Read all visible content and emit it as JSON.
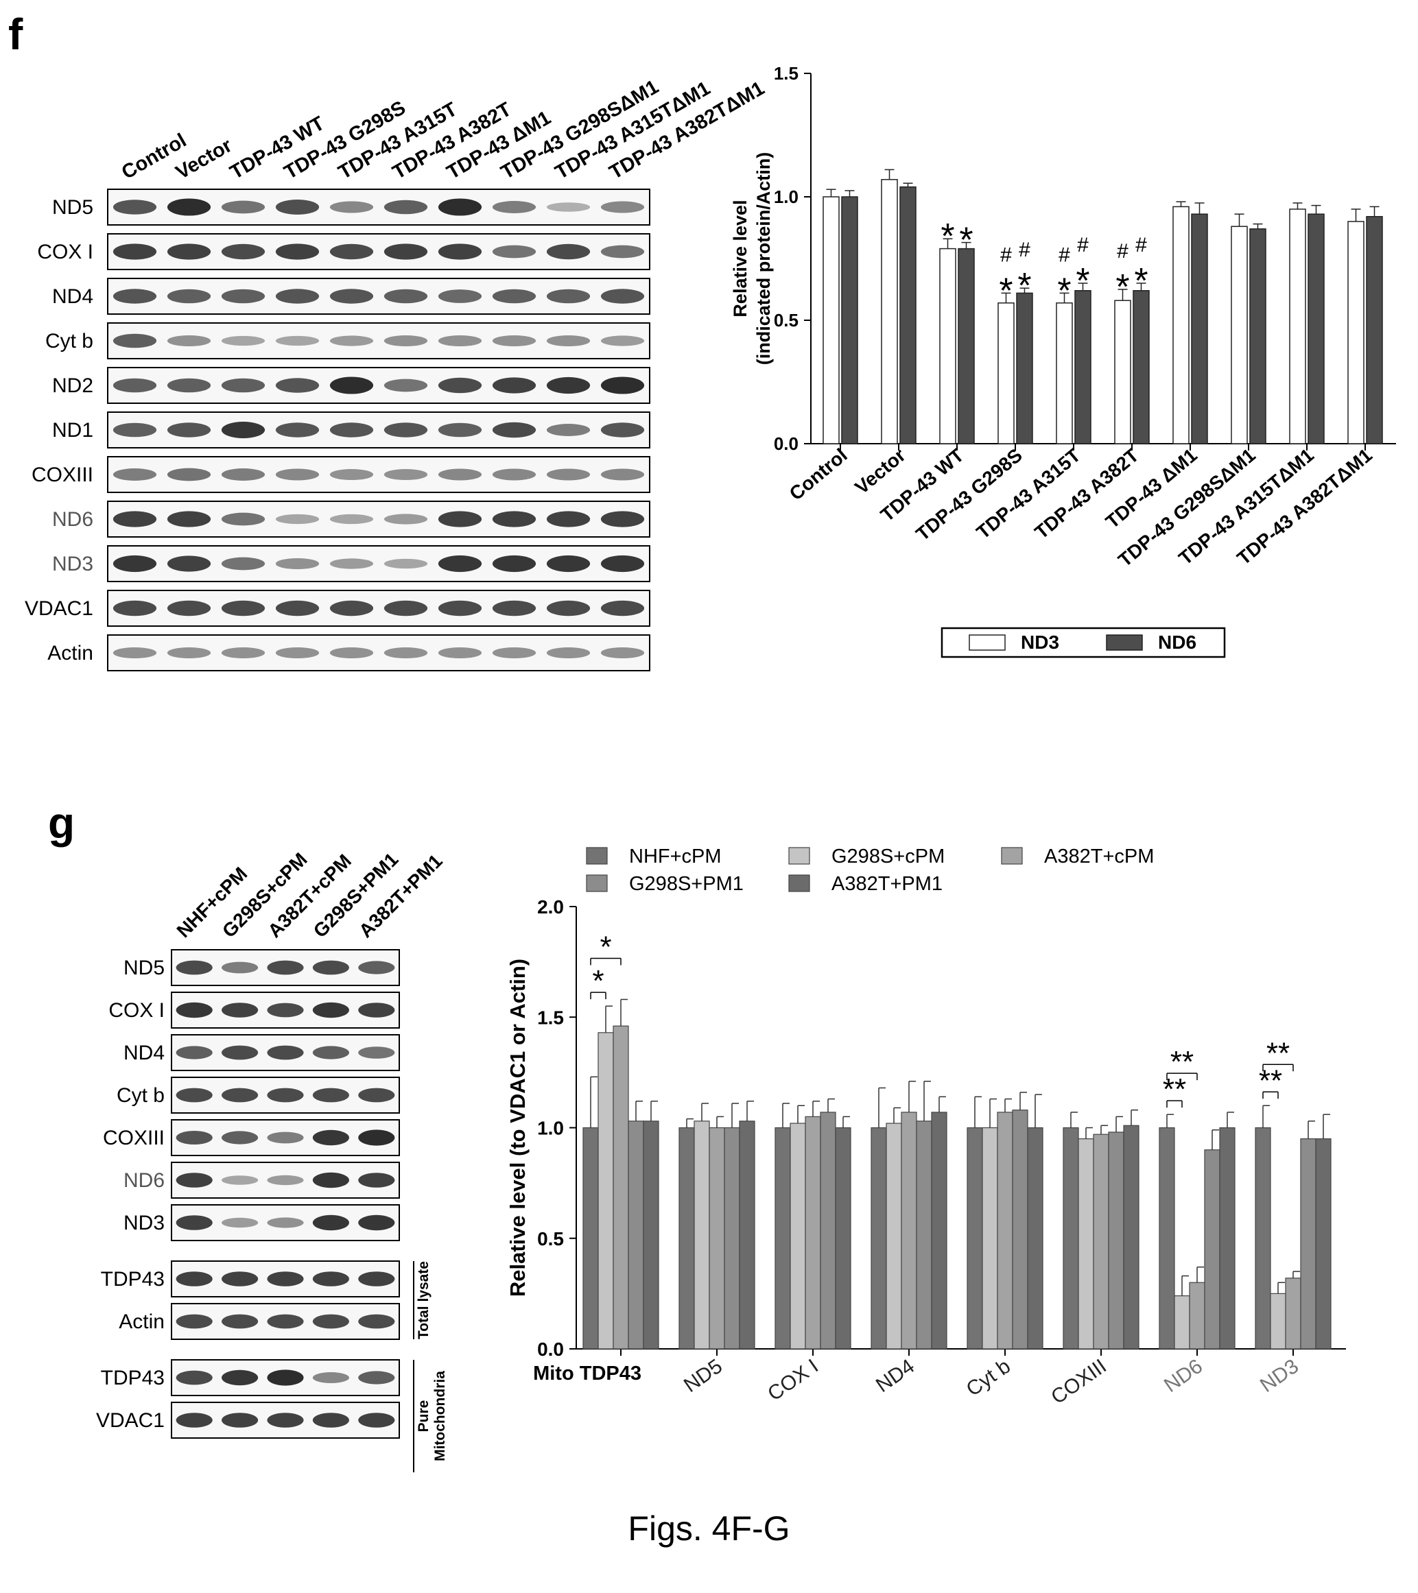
{
  "panels": {
    "f_label": "f",
    "g_label": "g"
  },
  "caption": "Figs. 4F-G",
  "blot_f": {
    "lanes": [
      "Control",
      "Vector",
      "TDP-43 WT",
      "TDP-43 G298S",
      "TDP-43 A315T",
      "TDP-43 A382T",
      "TDP-43 ΔM1",
      "TDP-43 G298SΔM1",
      "TDP-43 A315TΔM1",
      "TDP-43 A382TΔM1"
    ],
    "rows": [
      {
        "label": "ND5",
        "label_color": "#000000",
        "intensity": [
          0.75,
          0.95,
          0.6,
          0.78,
          0.5,
          0.7,
          0.95,
          0.55,
          0.3,
          0.5
        ]
      },
      {
        "label": "COX I",
        "label_color": "#000000",
        "intensity": [
          0.85,
          0.85,
          0.8,
          0.85,
          0.8,
          0.85,
          0.85,
          0.6,
          0.8,
          0.6
        ]
      },
      {
        "label": "ND4",
        "label_color": "#000000",
        "intensity": [
          0.75,
          0.7,
          0.7,
          0.75,
          0.75,
          0.7,
          0.65,
          0.7,
          0.7,
          0.75
        ]
      },
      {
        "label": "Cyt b",
        "label_color": "#000000",
        "intensity": [
          0.7,
          0.45,
          0.35,
          0.35,
          0.4,
          0.45,
          0.45,
          0.45,
          0.45,
          0.4
        ]
      },
      {
        "label": "ND2",
        "label_color": "#000000",
        "intensity": [
          0.7,
          0.7,
          0.7,
          0.75,
          0.95,
          0.6,
          0.8,
          0.85,
          0.9,
          0.95
        ]
      },
      {
        "label": "ND1",
        "label_color": "#000000",
        "intensity": [
          0.7,
          0.75,
          0.9,
          0.75,
          0.75,
          0.75,
          0.7,
          0.8,
          0.55,
          0.75
        ]
      },
      {
        "label": "COXIII",
        "label_color": "#000000",
        "intensity": [
          0.55,
          0.6,
          0.55,
          0.5,
          0.45,
          0.45,
          0.5,
          0.5,
          0.5,
          0.5
        ]
      },
      {
        "label": "ND6",
        "label_color": "#555555",
        "intensity": [
          0.85,
          0.85,
          0.6,
          0.35,
          0.35,
          0.4,
          0.85,
          0.85,
          0.85,
          0.85
        ]
      },
      {
        "label": "ND3",
        "label_color": "#555555",
        "intensity": [
          0.9,
          0.85,
          0.6,
          0.45,
          0.4,
          0.35,
          0.9,
          0.9,
          0.9,
          0.9
        ]
      },
      {
        "label": "VDAC1",
        "label_color": "#000000",
        "intensity": [
          0.8,
          0.8,
          0.8,
          0.8,
          0.8,
          0.8,
          0.8,
          0.8,
          0.8,
          0.8
        ]
      },
      {
        "label": "Actin",
        "label_color": "#000000",
        "intensity": [
          0.45,
          0.45,
          0.45,
          0.45,
          0.45,
          0.45,
          0.45,
          0.45,
          0.45,
          0.45
        ]
      }
    ]
  },
  "blot_g": {
    "lanes": [
      "NHF+cPM",
      "G298S+cPM",
      "A382T+cPM",
      "G298S+PM1",
      "A382T+PM1"
    ],
    "rows": [
      {
        "label": "ND5",
        "label_color": "#000000",
        "group": 0,
        "intensity": [
          0.8,
          0.55,
          0.8,
          0.8,
          0.7
        ]
      },
      {
        "label": "COX I",
        "label_color": "#000000",
        "group": 0,
        "intensity": [
          0.9,
          0.85,
          0.8,
          0.9,
          0.85
        ]
      },
      {
        "label": "ND4",
        "label_color": "#000000",
        "group": 0,
        "intensity": [
          0.7,
          0.8,
          0.8,
          0.7,
          0.6
        ]
      },
      {
        "label": "Cyt b",
        "label_color": "#000000",
        "group": 0,
        "intensity": [
          0.8,
          0.8,
          0.8,
          0.8,
          0.8
        ]
      },
      {
        "label": "COXIII",
        "label_color": "#000000",
        "group": 0,
        "intensity": [
          0.75,
          0.7,
          0.55,
          0.9,
          0.95
        ]
      },
      {
        "label": "ND6",
        "label_color": "#555555",
        "group": 0,
        "intensity": [
          0.85,
          0.35,
          0.4,
          0.9,
          0.85
        ]
      },
      {
        "label": "ND3",
        "label_color": "#000000",
        "group": 0,
        "intensity": [
          0.85,
          0.4,
          0.45,
          0.9,
          0.9
        ]
      },
      {
        "label": "TDP43",
        "label_color": "#000000",
        "group": 1,
        "intensity": [
          0.85,
          0.85,
          0.85,
          0.85,
          0.85
        ]
      },
      {
        "label": "Actin",
        "label_color": "#000000",
        "group": 1,
        "intensity": [
          0.8,
          0.8,
          0.8,
          0.8,
          0.8
        ]
      },
      {
        "label": "TDP43",
        "label_color": "#000000",
        "group": 2,
        "intensity": [
          0.8,
          0.9,
          0.95,
          0.5,
          0.7
        ]
      },
      {
        "label": "VDAC1",
        "label_color": "#000000",
        "group": 2,
        "intensity": [
          0.85,
          0.85,
          0.85,
          0.85,
          0.85
        ]
      }
    ],
    "bracket_labels": [
      "Total lysate",
      "Pure\nMitochondria"
    ]
  },
  "chart_data": [
    {
      "type": "bar",
      "panel": "f",
      "categories": [
        "Control",
        "Vector",
        "TDP-43 WT",
        "TDP-43 G298S",
        "TDP-43 A315T",
        "TDP-43 A382T",
        "TDP-43 ΔM1",
        "TDP-43 G298SΔM1",
        "TDP-43 A315TΔM1",
        "TDP-43 A382TΔM1"
      ],
      "series": [
        {
          "name": "ND3",
          "color": "#ffffff",
          "values": [
            1.0,
            1.07,
            0.79,
            0.57,
            0.57,
            0.58,
            0.96,
            0.88,
            0.95,
            0.9
          ],
          "errors": [
            0.03,
            0.04,
            0.04,
            0.04,
            0.04,
            0.045,
            0.02,
            0.05,
            0.025,
            0.05
          ]
        },
        {
          "name": "ND6",
          "color": "#4d4d4d",
          "values": [
            1.0,
            1.04,
            0.79,
            0.61,
            0.62,
            0.62,
            0.93,
            0.87,
            0.93,
            0.92
          ],
          "errors": [
            0.025,
            0.015,
            0.025,
            0.02,
            0.03,
            0.03,
            0.045,
            0.02,
            0.035,
            0.04
          ]
        }
      ],
      "annotations": [
        {
          "category": 2,
          "series": 0,
          "marks": [
            "*"
          ]
        },
        {
          "category": 2,
          "series": 1,
          "marks": [
            "*"
          ]
        },
        {
          "category": 3,
          "series": 0,
          "marks": [
            "*",
            "#"
          ]
        },
        {
          "category": 3,
          "series": 1,
          "marks": [
            "*",
            "#"
          ]
        },
        {
          "category": 4,
          "series": 0,
          "marks": [
            "*",
            "#"
          ]
        },
        {
          "category": 4,
          "series": 1,
          "marks": [
            "*",
            "#"
          ]
        },
        {
          "category": 5,
          "series": 0,
          "marks": [
            "*",
            "#"
          ]
        },
        {
          "category": 5,
          "series": 1,
          "marks": [
            "*",
            "#"
          ]
        }
      ],
      "ylabel_lines": [
        "Relative level",
        "(indicated protein/Actin)"
      ],
      "ylim": [
        0,
        1.5
      ],
      "yticks": [
        "0.0",
        "0.5",
        "1.0",
        "1.5"
      ],
      "legend_position": "bottom-right"
    },
    {
      "type": "bar",
      "panel": "g",
      "categories": [
        "Mito TDP43",
        "ND5",
        "COX I",
        "ND4",
        "Cyt b",
        "COXIII",
        "ND6",
        "ND3"
      ],
      "category_colors": [
        "#000000",
        "#222222",
        "#222222",
        "#222222",
        "#222222",
        "#222222",
        "#777777",
        "#777777"
      ],
      "series": [
        {
          "name": "NHF+cPM",
          "color": "#737373",
          "values": [
            1.0,
            1.0,
            1.0,
            1.0,
            1.0,
            1.0,
            1.0,
            1.0
          ],
          "errors": [
            0.23,
            0.04,
            0.11,
            0.18,
            0.14,
            0.07,
            0.06,
            0.1
          ]
        },
        {
          "name": "G298S+cPM",
          "color": "#c4c4c4",
          "values": [
            1.43,
            1.03,
            1.02,
            1.02,
            1.0,
            0.95,
            0.24,
            0.25
          ],
          "errors": [
            0.12,
            0.08,
            0.08,
            0.07,
            0.13,
            0.05,
            0.09,
            0.05
          ]
        },
        {
          "name": "A382T+cPM",
          "color": "#a3a3a3",
          "values": [
            1.46,
            1.0,
            1.05,
            1.07,
            1.07,
            0.97,
            0.3,
            0.32
          ],
          "errors": [
            0.12,
            0.05,
            0.07,
            0.14,
            0.06,
            0.04,
            0.07,
            0.03
          ]
        },
        {
          "name": "G298S+PM1",
          "color": "#8c8c8c",
          "values": [
            1.03,
            1.0,
            1.07,
            1.03,
            1.08,
            0.98,
            0.9,
            0.95
          ],
          "errors": [
            0.09,
            0.11,
            0.06,
            0.18,
            0.08,
            0.07,
            0.09,
            0.08
          ]
        },
        {
          "name": "A382T+PM1",
          "color": "#6b6b6b",
          "values": [
            1.03,
            1.03,
            1.0,
            1.07,
            1.0,
            1.01,
            1.0,
            0.95
          ],
          "errors": [
            0.09,
            0.09,
            0.05,
            0.07,
            0.15,
            0.07,
            0.07,
            0.11
          ]
        }
      ],
      "legend": [
        {
          "label": "NHF+cPM",
          "series": 0
        },
        {
          "label": "G298S+cPM",
          "series": 1
        },
        {
          "label": "A382T+cPM",
          "series": 2
        },
        {
          "label": "G298S+PM1",
          "series": 3
        },
        {
          "label": "A382T+PM1",
          "series": 4
        }
      ],
      "significance": [
        {
          "category": 0,
          "from": 0,
          "to": 1,
          "label": "*"
        },
        {
          "category": 0,
          "from": 0,
          "to": 2,
          "label": "*"
        },
        {
          "category": 6,
          "from": 0,
          "to": 1,
          "label": "**"
        },
        {
          "category": 6,
          "from": 0,
          "to": 2,
          "label": "**"
        },
        {
          "category": 7,
          "from": 0,
          "to": 1,
          "label": "**"
        },
        {
          "category": 7,
          "from": 0,
          "to": 2,
          "label": "**"
        }
      ],
      "ylabel": "Relative  level (to VDAC1 or Actin)",
      "ylim": [
        0,
        2.0
      ],
      "yticks": [
        "0.0",
        "0.5",
        "1.0",
        "1.5",
        "2.0"
      ],
      "legend_position": "top"
    }
  ]
}
